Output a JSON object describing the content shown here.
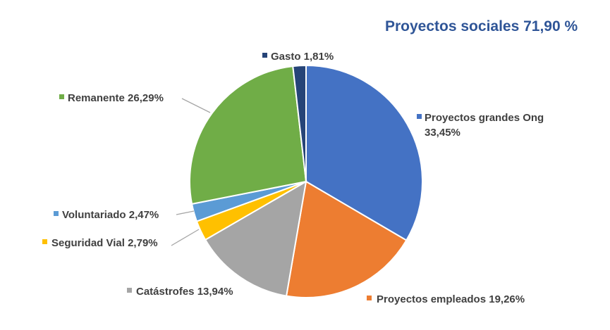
{
  "chart_data": {
    "type": "pie",
    "title": "Proyectos sociales 71,90 %",
    "slices": [
      {
        "label": "Proyectos grandes Ong",
        "value": 33.45,
        "value_text": "33,45%",
        "color": "#4472C4"
      },
      {
        "label": "Proyectos empleados",
        "value": 19.26,
        "value_text": "19,26%",
        "color": "#ED7D31"
      },
      {
        "label": "Catástrofes",
        "value": 13.94,
        "value_text": "13,94%",
        "color": "#A5A5A5"
      },
      {
        "label": "Seguridad Vial",
        "value": 2.79,
        "value_text": "2,79%",
        "color": "#FFC000"
      },
      {
        "label": "Voluntariado",
        "value": 2.47,
        "value_text": "2,47%",
        "color": "#5B9BD5"
      },
      {
        "label": "Remanente",
        "value": 26.29,
        "value_text": "26,29%",
        "color": "#70AD47"
      },
      {
        "label": "Gasto",
        "value": 1.81,
        "value_text": "1,81%",
        "color": "#264478"
      }
    ]
  }
}
